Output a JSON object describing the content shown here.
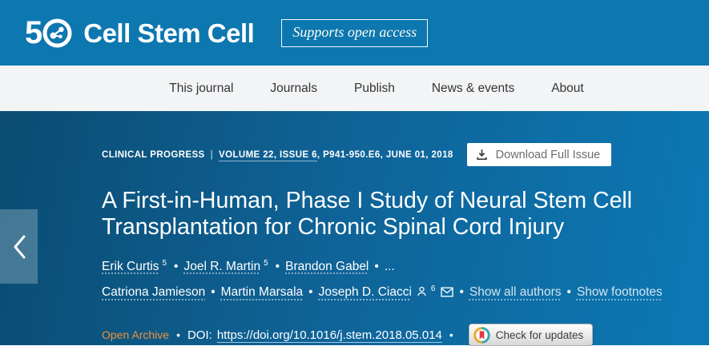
{
  "colors": {
    "header_bg": "#0d77b0",
    "nav_bg": "#f2f4f6",
    "hero_grad_start": "#0a4c72",
    "hero_grad_mid": "#0f6296",
    "hero_grad_end": "#0c79b5",
    "open_archive_orange": "#f0913d"
  },
  "header": {
    "logo_prefix": "5",
    "journal_name": "Cell Stem Cell",
    "open_access_badge": "Supports open access"
  },
  "nav": {
    "items": [
      "This journal",
      "Journals",
      "Publish",
      "News & events",
      "About"
    ]
  },
  "article": {
    "category": "CLINICAL PROGRESS",
    "category_separator": "|",
    "issue_link": "VOLUME 22, ISSUE 6",
    "issue_detail": ", P941-950.E6, JUNE 01, 2018",
    "download_button": "Download Full Issue",
    "title": "A First-in-Human, Phase I Study of Neural Stem Cell Transplantation for Chronic Spinal Cord Injury",
    "authors": [
      {
        "name": "Erik Curtis",
        "sup": "5",
        "sep": "•"
      },
      {
        "name": "Joel R. Martin",
        "sup": "5",
        "sep": "•"
      },
      {
        "name": "Brandon Gabel",
        "sep": "•"
      },
      {
        "ellipsis": "..."
      },
      {
        "name": "Catriona Jamieson",
        "sep": "•"
      },
      {
        "name": "Martin Marsala",
        "sep": "•"
      },
      {
        "name": "Joseph D. Ciacci",
        "person_icon": true,
        "sup": "6",
        "mail_icon": true,
        "sep": "•"
      }
    ],
    "show_all_authors": "Show all authors",
    "authors_links_separator": "•",
    "show_footnotes": "Show footnotes",
    "open_archive": "Open Archive",
    "meta_separator": "•",
    "doi_label": "DOI:",
    "doi_url": "https://doi.org/10.1016/j.stem.2018.05.014",
    "check_updates_button": "Check for updates"
  },
  "icons": {
    "logo_circle": "cell-press-50-molecule",
    "download": "download-arrow-tray",
    "author_person": "person-outline",
    "author_mail": "envelope",
    "check_updates": "crossmark-bookmark-circle",
    "prev": "chevron-left"
  }
}
